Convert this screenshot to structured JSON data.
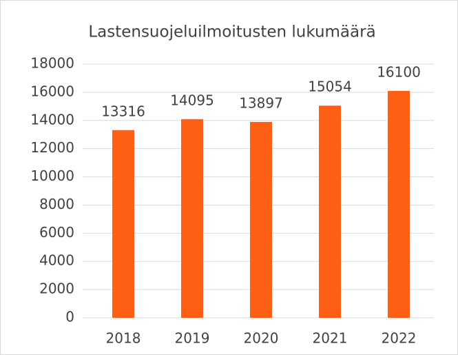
{
  "chart_data": {
    "type": "bar",
    "title": "Lastensuojeluilmoitusten lukumäärä",
    "categories": [
      "2018",
      "2019",
      "2020",
      "2021",
      "2022"
    ],
    "values": [
      13316,
      14095,
      13897,
      15054,
      16100
    ],
    "color": "#ff5f15",
    "ylim": [
      0,
      18000
    ],
    "yticks": [
      0,
      2000,
      4000,
      6000,
      8000,
      10000,
      12000,
      14000,
      16000,
      18000
    ],
    "grid": true
  }
}
